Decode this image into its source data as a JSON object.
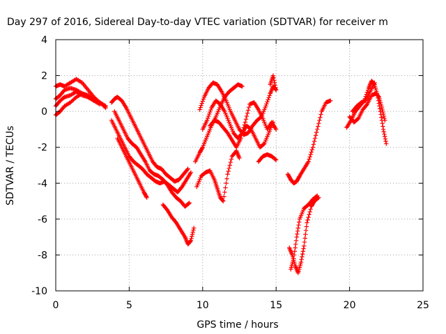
{
  "chart_data": {
    "type": "scatter",
    "title": "Day 297 of 2016, Sidereal Day-to-day VTEC variation (SDTVAR) for receiver m",
    "xlabel": "GPS time / hours",
    "ylabel": "SDTVAR / TECUs",
    "xlim": [
      0,
      25
    ],
    "ylim": [
      -10,
      4
    ],
    "x_ticks": [
      0,
      5,
      10,
      15,
      20,
      25
    ],
    "y_ticks": [
      -10,
      -8,
      -6,
      -4,
      -2,
      0,
      2,
      4
    ],
    "x_tick_labels": [
      "0",
      "5",
      "10",
      "15",
      "20",
      "25"
    ],
    "y_tick_labels": [
      "-10",
      "-8",
      "-6",
      "-4",
      "-2",
      "0",
      "2",
      "4"
    ],
    "grid": true,
    "marker": "plus",
    "color": "#ff0000",
    "series": [
      {
        "x": [
          0.0,
          0.3,
          0.6,
          1.0,
          1.4,
          1.8,
          2.2,
          2.6,
          3.0,
          3.4
        ],
        "y": [
          -0.2,
          0.0,
          0.3,
          0.5,
          0.8,
          1.0,
          0.9,
          0.7,
          0.5,
          0.2
        ]
      },
      {
        "x": [
          0.0,
          0.3,
          0.6,
          1.0,
          1.4,
          1.8,
          2.2,
          2.6,
          3.0,
          3.4
        ],
        "y": [
          1.4,
          1.5,
          1.4,
          1.6,
          1.8,
          1.6,
          1.2,
          0.8,
          0.5,
          0.3
        ]
      },
      {
        "x": [
          0.0,
          0.3,
          0.6,
          1.0,
          1.4,
          1.8,
          2.2,
          2.6,
          3.0
        ],
        "y": [
          0.7,
          0.9,
          1.2,
          1.3,
          1.2,
          1.0,
          0.8,
          0.6,
          0.4
        ]
      },
      {
        "x": [
          0.0,
          0.3,
          0.6,
          1.0,
          1.4,
          1.8,
          2.2,
          2.6
        ],
        "y": [
          0.3,
          0.6,
          0.8,
          0.9,
          1.1,
          0.9,
          0.8,
          0.6
        ]
      },
      {
        "x": [
          3.8,
          4.0,
          4.2,
          4.5,
          4.8,
          5.1,
          5.4,
          5.7,
          6.0,
          6.3,
          6.6,
          6.9,
          7.2,
          7.5,
          7.8,
          8.1,
          8.4,
          8.7,
          9.0
        ],
        "y": [
          0.5,
          0.7,
          0.8,
          0.6,
          0.2,
          -0.3,
          -0.8,
          -1.3,
          -1.8,
          -2.3,
          -2.8,
          -3.1,
          -3.2,
          -3.5,
          -3.7,
          -3.9,
          -3.8,
          -3.5,
          -3.2
        ]
      },
      {
        "x": [
          3.8,
          4.1,
          4.4,
          4.7,
          5.0,
          5.3,
          5.6,
          5.9,
          6.2,
          6.5,
          6.8,
          7.1,
          7.4,
          7.7,
          8.0,
          8.3,
          8.6,
          8.9,
          9.2
        ],
        "y": [
          -0.5,
          -1.0,
          -1.5,
          -2.0,
          -2.5,
          -2.8,
          -3.0,
          -3.2,
          -3.5,
          -3.7,
          -3.9,
          -4.0,
          -3.9,
          -4.1,
          -4.3,
          -4.5,
          -4.2,
          -3.8,
          -3.4
        ]
      },
      {
        "x": [
          4.0,
          4.3,
          4.6,
          4.9,
          5.2,
          5.5,
          5.8,
          6.1,
          6.4,
          6.7,
          7.0,
          7.3,
          7.6,
          7.9,
          8.2,
          8.5,
          8.8,
          9.1
        ],
        "y": [
          0.0,
          -0.5,
          -1.0,
          -1.5,
          -1.8,
          -2.0,
          -2.4,
          -2.8,
          -3.3,
          -3.5,
          -3.6,
          -3.8,
          -4.1,
          -4.5,
          -4.8,
          -5.0,
          -5.3,
          -5.1
        ]
      },
      {
        "x": [
          4.2,
          4.5,
          4.8,
          5.1,
          5.4,
          5.7,
          6.0,
          6.2
        ],
        "y": [
          -1.5,
          -2.0,
          -2.5,
          -3.0,
          -3.5,
          -4.0,
          -4.5,
          -4.8
        ]
      },
      {
        "x": [
          7.3,
          7.6,
          7.9,
          8.2,
          8.5,
          8.8,
          9.0,
          9.2,
          9.4
        ],
        "y": [
          -5.2,
          -5.5,
          -5.9,
          -6.2,
          -6.6,
          -7.0,
          -7.4,
          -7.2,
          -6.5
        ]
      },
      {
        "x": [
          9.5,
          9.8,
          10.0,
          10.3,
          10.6,
          10.9,
          11.2,
          11.5,
          11.8,
          12.1,
          12.4,
          12.7
        ],
        "y": [
          -2.8,
          -2.3,
          -2.0,
          -1.4,
          -0.8,
          -0.3,
          0.3,
          0.8,
          1.1,
          1.3,
          1.5,
          1.4
        ]
      },
      {
        "x": [
          9.8,
          10.1,
          10.4,
          10.7,
          11.0,
          11.3,
          11.6,
          11.9,
          12.2,
          12.5,
          12.8,
          13.1,
          13.4,
          13.7,
          14.0,
          14.3,
          14.6,
          14.8,
          15.0
        ],
        "y": [
          0.1,
          0.8,
          1.3,
          1.6,
          1.5,
          1.1,
          0.6,
          0.0,
          -0.5,
          -1.0,
          -1.3,
          -1.2,
          -0.8,
          -0.5,
          -0.3,
          0.3,
          1.0,
          1.4,
          1.2
        ]
      },
      {
        "x": [
          10.0,
          10.3,
          10.6,
          10.9,
          11.2,
          11.5,
          11.8,
          12.1,
          12.4,
          12.7,
          13.0,
          13.3,
          13.6,
          13.9,
          14.2,
          14.5,
          14.8
        ],
        "y": [
          -1.0,
          -0.5,
          0.2,
          0.6,
          0.4,
          0.0,
          -0.6,
          -1.2,
          -1.5,
          -1.2,
          -0.8,
          -1.0,
          -1.5,
          -2.0,
          -1.8,
          -1.2,
          -0.6
        ]
      },
      {
        "x": [
          10.5,
          10.8,
          11.1,
          11.4,
          11.7,
          12.0,
          12.3,
          12.6,
          12.9,
          13.2,
          13.5,
          13.8,
          14.1,
          14.4,
          14.7,
          15.0
        ],
        "y": [
          -0.8,
          -0.5,
          -0.6,
          -0.9,
          -1.2,
          -1.6,
          -2.0,
          -1.5,
          -0.6,
          0.4,
          0.5,
          0.1,
          -0.4,
          -1.0,
          -0.6,
          -1.0
        ]
      },
      {
        "x": [
          9.6,
          9.9,
          10.2,
          10.5,
          10.8,
          11.0,
          11.2,
          11.4,
          11.7,
          12.0,
          12.3,
          12.5
        ],
        "y": [
          -4.2,
          -3.6,
          -3.4,
          -3.3,
          -3.8,
          -4.3,
          -4.8,
          -5.0,
          -3.5,
          -2.5,
          -2.2,
          -2.6
        ]
      },
      {
        "x": [
          13.8,
          14.1,
          14.4,
          14.7,
          15.0
        ],
        "y": [
          -2.8,
          -2.5,
          -2.4,
          -2.5,
          -2.7
        ]
      },
      {
        "x": [
          14.6,
          14.8,
          15.0
        ],
        "y": [
          1.5,
          2.0,
          1.2
        ]
      },
      {
        "x": [
          15.8,
          16.0,
          16.2,
          16.4,
          16.6,
          16.9,
          17.2,
          17.5,
          17.8,
          18.1,
          18.4,
          18.7
        ],
        "y": [
          -3.5,
          -3.8,
          -4.0,
          -3.9,
          -3.6,
          -3.2,
          -2.8,
          -2.0,
          -1.0,
          0.0,
          0.5,
          0.6
        ]
      },
      {
        "x": [
          15.9,
          16.1,
          16.3,
          16.5,
          16.7,
          16.9,
          17.1,
          17.4,
          17.6,
          17.9
        ],
        "y": [
          -7.6,
          -8.0,
          -8.6,
          -9.0,
          -8.4,
          -7.5,
          -6.2,
          -5.3,
          -5.0,
          -4.8
        ]
      },
      {
        "x": [
          16.0,
          16.2,
          16.4,
          16.6,
          16.9,
          17.2,
          17.5,
          17.8
        ],
        "y": [
          -8.8,
          -8.2,
          -7.0,
          -6.0,
          -5.4,
          -5.2,
          -4.9,
          -4.7
        ]
      },
      {
        "x": [
          19.8,
          20.1,
          20.4,
          20.7,
          21.0,
          21.3,
          21.5,
          21.7,
          21.9,
          22.1,
          22.3,
          22.5
        ],
        "y": [
          -0.9,
          -0.5,
          0.0,
          0.3,
          0.6,
          1.3,
          1.7,
          1.5,
          0.9,
          0.0,
          -1.0,
          -1.8
        ]
      },
      {
        "x": [
          20.0,
          20.3,
          20.6,
          20.9,
          21.2,
          21.5,
          21.8,
          22.0,
          22.2,
          22.4
        ],
        "y": [
          -0.3,
          -0.6,
          -0.4,
          0.1,
          0.4,
          0.9,
          1.0,
          0.8,
          0.2,
          -0.5
        ]
      },
      {
        "x": [
          20.2,
          20.5,
          20.8,
          21.1,
          21.4,
          21.7
        ],
        "y": [
          0.0,
          0.3,
          0.5,
          0.6,
          1.1,
          1.6
        ]
      }
    ]
  }
}
